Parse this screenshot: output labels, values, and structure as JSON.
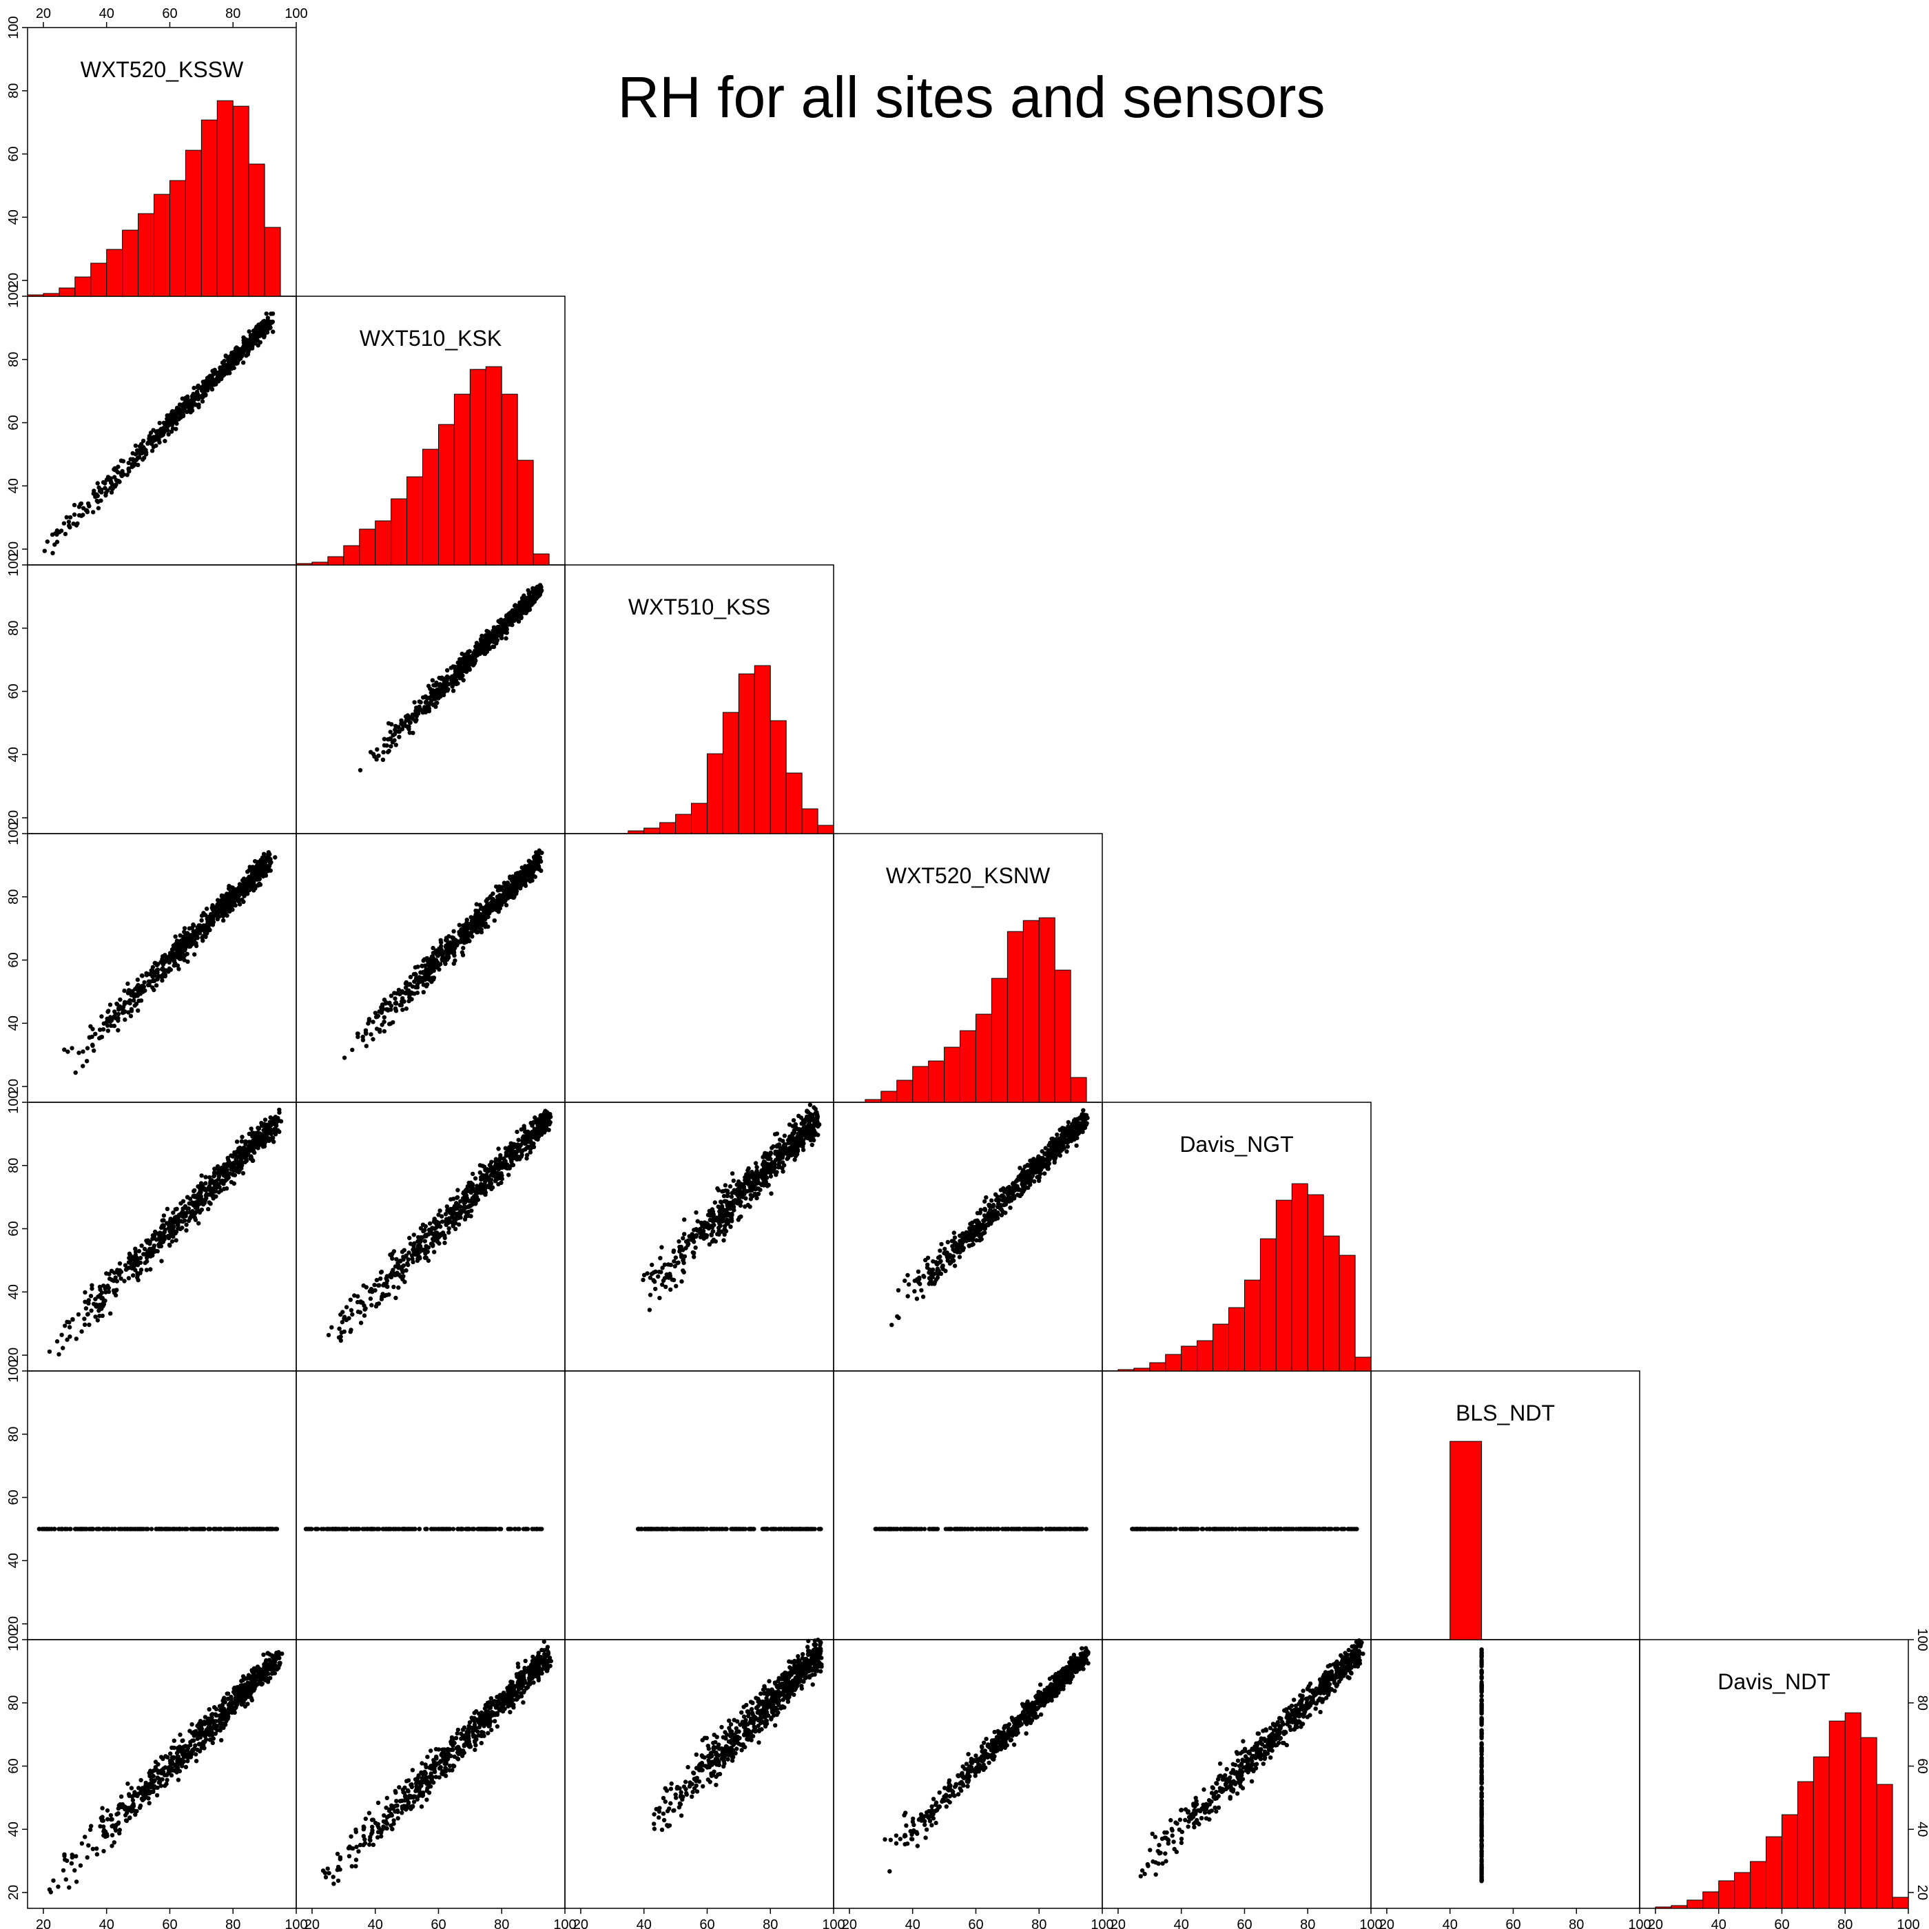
{
  "title": "RH for all sites and sensors",
  "colors": {
    "histogram_fill": "#ff0000",
    "points": "#000000",
    "frame": "#000000"
  },
  "axes": {
    "range": [
      15,
      100
    ],
    "ticks": [
      20,
      40,
      60,
      80,
      100
    ]
  },
  "chart_data": {
    "type": "scatter",
    "subtype": "pairs-matrix (lower triangle scatter, diagonal histograms)",
    "title": "RH for all sites and sensors",
    "variables": [
      "WXT520_KSSW",
      "WXT510_KSK",
      "WXT510_KSS",
      "WXT520_KSNW",
      "Davis_NGT",
      "BLS_NDT",
      "Davis_NDT"
    ],
    "axis_range": [
      15,
      100
    ],
    "ticks": [
      20,
      40,
      60,
      80,
      100
    ],
    "grid": false,
    "histograms": {
      "bin_width": 5,
      "series": [
        {
          "variable": "WXT520_KSSW",
          "bins": [
            [
              15,
              20,
              0.5
            ],
            [
              20,
              25,
              1
            ],
            [
              25,
              30,
              3
            ],
            [
              30,
              35,
              7
            ],
            [
              35,
              40,
              12
            ],
            [
              40,
              45,
              17
            ],
            [
              45,
              50,
              24
            ],
            [
              50,
              55,
              30
            ],
            [
              55,
              60,
              37
            ],
            [
              60,
              65,
              42
            ],
            [
              65,
              70,
              53
            ],
            [
              70,
              75,
              64
            ],
            [
              75,
              80,
              71
            ],
            [
              80,
              85,
              69
            ],
            [
              85,
              90,
              48
            ],
            [
              90,
              95,
              25
            ]
          ]
        },
        {
          "variable": "WXT510_KSK",
          "bins": [
            [
              15,
              20,
              0.5
            ],
            [
              20,
              25,
              1
            ],
            [
              25,
              30,
              3
            ],
            [
              30,
              35,
              7
            ],
            [
              35,
              40,
              13
            ],
            [
              40,
              45,
              16
            ],
            [
              45,
              50,
              24
            ],
            [
              50,
              55,
              32
            ],
            [
              55,
              60,
              42
            ],
            [
              60,
              65,
              51
            ],
            [
              65,
              70,
              62
            ],
            [
              70,
              75,
              71
            ],
            [
              75,
              80,
              72
            ],
            [
              80,
              85,
              62
            ],
            [
              85,
              90,
              38
            ],
            [
              90,
              95,
              4
            ]
          ]
        },
        {
          "variable": "WXT510_KSS",
          "bins": [
            [
              35,
              40,
              1
            ],
            [
              40,
              45,
              2
            ],
            [
              45,
              50,
              4
            ],
            [
              50,
              55,
              7
            ],
            [
              55,
              60,
              11
            ],
            [
              60,
              65,
              29
            ],
            [
              65,
              70,
              44
            ],
            [
              70,
              75,
              58
            ],
            [
              75,
              80,
              61
            ],
            [
              80,
              85,
              41
            ],
            [
              85,
              90,
              22
            ],
            [
              90,
              95,
              9
            ],
            [
              95,
              100,
              3
            ]
          ]
        },
        {
          "variable": "WXT520_KSNW",
          "bins": [
            [
              25,
              30,
              1
            ],
            [
              30,
              35,
              4
            ],
            [
              35,
              40,
              8
            ],
            [
              40,
              45,
              13
            ],
            [
              45,
              50,
              15
            ],
            [
              50,
              55,
              20
            ],
            [
              55,
              60,
              26
            ],
            [
              60,
              65,
              32
            ],
            [
              65,
              70,
              45
            ],
            [
              70,
              75,
              62
            ],
            [
              75,
              80,
              66
            ],
            [
              80,
              85,
              67
            ],
            [
              85,
              90,
              48
            ],
            [
              90,
              95,
              9
            ]
          ]
        },
        {
          "variable": "Davis_NGT",
          "bins": [
            [
              20,
              25,
              0.5
            ],
            [
              25,
              30,
              1
            ],
            [
              30,
              35,
              3
            ],
            [
              35,
              40,
              6
            ],
            [
              40,
              45,
              9
            ],
            [
              45,
              50,
              11
            ],
            [
              50,
              55,
              17
            ],
            [
              55,
              60,
              23
            ],
            [
              60,
              65,
              33
            ],
            [
              65,
              70,
              48
            ],
            [
              70,
              75,
              62
            ],
            [
              75,
              80,
              68
            ],
            [
              80,
              85,
              64
            ],
            [
              85,
              90,
              49
            ],
            [
              90,
              95,
              42
            ],
            [
              95,
              100,
              5
            ]
          ]
        },
        {
          "variable": "BLS_NDT",
          "bins": [
            [
              40,
              50,
              72
            ]
          ]
        },
        {
          "variable": "Davis_NDT",
          "bins": [
            [
              20,
              25,
              0.5
            ],
            [
              25,
              30,
              1
            ],
            [
              30,
              35,
              3
            ],
            [
              35,
              40,
              6
            ],
            [
              40,
              45,
              10
            ],
            [
              45,
              50,
              13
            ],
            [
              50,
              55,
              17
            ],
            [
              55,
              60,
              26
            ],
            [
              60,
              65,
              34
            ],
            [
              65,
              70,
              46
            ],
            [
              70,
              75,
              55
            ],
            [
              75,
              80,
              68
            ],
            [
              80,
              85,
              71
            ],
            [
              85,
              90,
              62
            ],
            [
              90,
              95,
              45
            ],
            [
              95,
              100,
              4
            ]
          ]
        }
      ]
    },
    "scatter_panels": [
      {
        "x": "WXT520_KSSW",
        "y": "WXT510_KSK",
        "relation": "linear",
        "x_range": [
          18,
          92
        ],
        "spread": 3
      },
      {
        "x": "WXT520_KSSW",
        "y": "WXT510_KSS",
        "relation": "empty"
      },
      {
        "x": "WXT510_KSK",
        "y": "WXT510_KSS",
        "relation": "linear",
        "x_range": [
          35,
          92
        ],
        "spread": 3
      },
      {
        "x": "WXT520_KSSW",
        "y": "WXT520_KSNW",
        "relation": "linear",
        "x_range": [
          26,
          92
        ],
        "spread": 4
      },
      {
        "x": "WXT510_KSK",
        "y": "WXT520_KSNW",
        "relation": "linear",
        "x_range": [
          28,
          92
        ],
        "spread": 4
      },
      {
        "x": "WXT510_KSS",
        "y": "WXT520_KSNW",
        "relation": "empty"
      },
      {
        "x": "WXT520_KSSW",
        "y": "Davis_NGT",
        "relation": "linear",
        "x_range": [
          20,
          95
        ],
        "spread": 5
      },
      {
        "x": "WXT510_KSK",
        "y": "Davis_NGT",
        "relation": "linear",
        "x_range": [
          22,
          95
        ],
        "spread": 5
      },
      {
        "x": "WXT510_KSS",
        "y": "Davis_NGT",
        "relation": "linear",
        "x_range": [
          38,
          95
        ],
        "spread": 6
      },
      {
        "x": "WXT520_KSNW",
        "y": "Davis_NGT",
        "relation": "linear",
        "x_range": [
          30,
          95
        ],
        "spread": 4
      },
      {
        "x": "WXT520_KSSW",
        "y": "BLS_NDT",
        "relation": "constant_y",
        "y_value": 50,
        "x_range": [
          18,
          94
        ]
      },
      {
        "x": "WXT510_KSK",
        "y": "BLS_NDT",
        "relation": "constant_y",
        "y_value": 50,
        "x_range": [
          18,
          93
        ]
      },
      {
        "x": "WXT510_KSS",
        "y": "BLS_NDT",
        "relation": "constant_y",
        "y_value": 50,
        "x_range": [
          38,
          96
        ]
      },
      {
        "x": "WXT520_KSNW",
        "y": "BLS_NDT",
        "relation": "constant_y",
        "y_value": 50,
        "x_range": [
          28,
          95
        ]
      },
      {
        "x": "Davis_NGT",
        "y": "BLS_NDT",
        "relation": "constant_y",
        "y_value": 50,
        "x_range": [
          23,
          97
        ]
      },
      {
        "x": "WXT520_KSSW",
        "y": "Davis_NDT",
        "relation": "linear",
        "x_range": [
          20,
          95
        ],
        "spread": 5
      },
      {
        "x": "WXT510_KSK",
        "y": "Davis_NDT",
        "relation": "linear",
        "x_range": [
          20,
          95
        ],
        "spread": 5
      },
      {
        "x": "WXT510_KSS",
        "y": "Davis_NDT",
        "relation": "linear",
        "x_range": [
          40,
          96
        ],
        "spread": 6
      },
      {
        "x": "WXT520_KSNW",
        "y": "Davis_NDT",
        "relation": "linear",
        "x_range": [
          30,
          95
        ],
        "spread": 4
      },
      {
        "x": "Davis_NGT",
        "y": "Davis_NDT",
        "relation": "linear",
        "x_range": [
          22,
          97
        ],
        "spread": 5
      },
      {
        "x": "BLS_NDT",
        "y": "Davis_NDT",
        "relation": "constant_x",
        "x_value": 50,
        "y_range": [
          23,
          97
        ]
      }
    ]
  }
}
